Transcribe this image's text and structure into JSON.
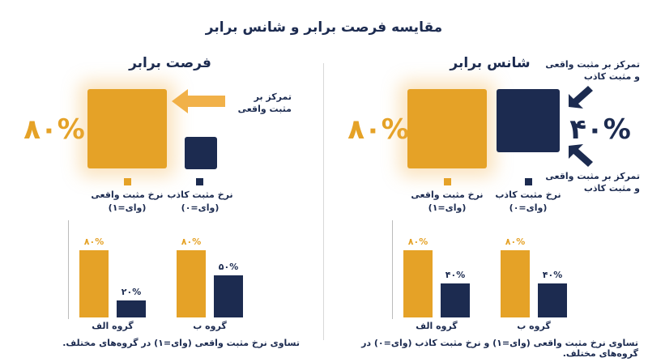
{
  "title": "مقایسه فرصت برابر و شانس برابر",
  "colors": {
    "true_positive": "#e5a227",
    "false_positive": "#1c2b50"
  },
  "equal_opportunity": {
    "title": "فرصت برابر",
    "big_value": "۸۰%",
    "arrow_note_line1": "تمرکز بر",
    "arrow_note_line2": "مثبت واقعی",
    "legend_tp_line1": "نرخ مثبت واقعی",
    "legend_tp_line2": "(وای=۱)",
    "legend_fp_line1": "نرخ مثبت کاذب",
    "legend_fp_line2": "(وای=۰)",
    "caption": "تساوی نرخ مثبت واقعی (وای=۱) در گروه‌های مختلف."
  },
  "equalized_odds": {
    "title": "شانس برابر",
    "big_value_tp": "۸۰%",
    "big_value_fp": "۴۰%",
    "note_top_line1": "تمرکز بر مثبت واقعی",
    "note_top_line2": "و مثبت کاذب",
    "note_bottom_line1": "تمرکز بر مثبت واقعی",
    "note_bottom_line2": "و مثبت کاذب",
    "legend_tp_line1": "نرخ مثبت واقعی",
    "legend_tp_line2": "(وای=۱)",
    "legend_fp_line1": "نرخ مثبت کاذب",
    "legend_fp_line2": "(وای=۰)",
    "caption": "تساوی نرخ مثبت واقعی (وای=۱) و نرخ مثبت کاذب (وای=۰) در گروه‌های مختلف."
  },
  "chart_data": [
    {
      "type": "bar",
      "categories": [
        "گروه الف",
        "گروه ب"
      ],
      "series": [
        {
          "values": [
            80,
            80
          ],
          "labels": [
            "۸۰%",
            "۸۰%"
          ]
        },
        {
          "values": [
            20,
            50
          ],
          "labels": [
            "۲۰%",
            "۵۰%"
          ]
        }
      ],
      "ylim": [
        0,
        100
      ]
    },
    {
      "type": "bar",
      "categories": [
        "گروه الف",
        "گروه ب"
      ],
      "series": [
        {
          "values": [
            80,
            80
          ],
          "labels": [
            "۸۰%",
            "۸۰%"
          ]
        },
        {
          "values": [
            40,
            40
          ],
          "labels": [
            "۴۰%",
            "۴۰%"
          ]
        }
      ],
      "ylim": [
        0,
        100
      ]
    }
  ]
}
